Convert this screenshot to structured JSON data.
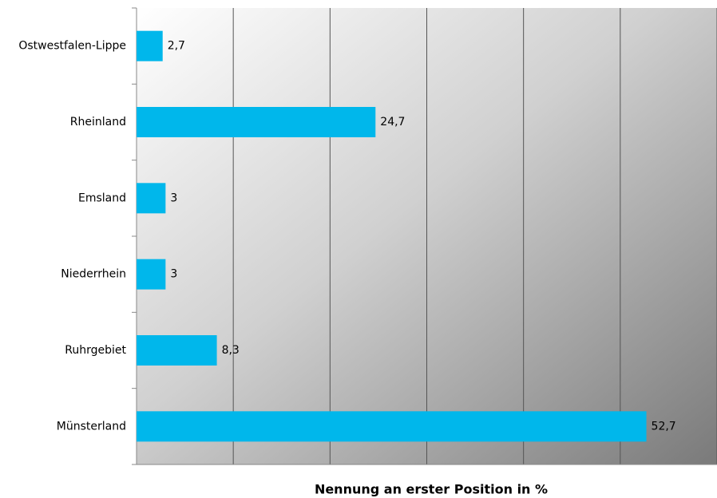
{
  "chart_data": {
    "type": "bar",
    "orientation": "horizontal",
    "x_label": "Nennung an erster Position in %",
    "categories": [
      "Ostwestfalen-Lippe",
      "Rheinland",
      "Emsland",
      "Niederrhein",
      "Ruhrgebiet",
      "Münsterland"
    ],
    "values": [
      2.7,
      24.7,
      3,
      3,
      8.3,
      52.7
    ],
    "value_labels": [
      "2,7",
      "24,7",
      "3",
      "3",
      "8,3",
      "52,7"
    ],
    "color": "#00b7eb",
    "xlim": [
      0,
      60
    ],
    "xticks": [
      0,
      10,
      20,
      30,
      40,
      50,
      60
    ],
    "grid": true
  }
}
